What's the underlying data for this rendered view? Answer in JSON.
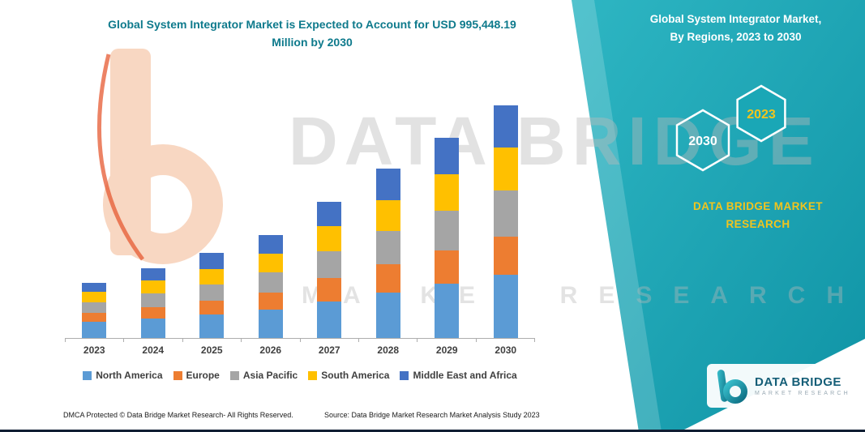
{
  "header": {
    "title_line1": "Global System Integrator Market is Expected to Account for USD 995,448.19",
    "title_line2": "Million by 2030",
    "title_color": "#0e7a8c"
  },
  "watermark": {
    "line1": "DATA BRIDGE",
    "line2": "MARKET RESEARCH"
  },
  "chart_data": {
    "type": "bar",
    "stacked": true,
    "title": "Global System Integrator Market is Expected to Account for USD 995,448.19 Million by 2030",
    "unit": "USD Million",
    "categories": [
      "2023",
      "2024",
      "2025",
      "2026",
      "2027",
      "2028",
      "2029",
      "2030"
    ],
    "series": [
      {
        "name": "North America",
        "color": "#5B9BD5",
        "values": [
          70000,
          84000,
          100000,
          122000,
          157000,
          196000,
          231000,
          269000
        ]
      },
      {
        "name": "Europe",
        "color": "#ED7D31",
        "values": [
          38000,
          49000,
          59000,
          73000,
          98000,
          119000,
          143000,
          164000
        ]
      },
      {
        "name": "Asia Pacific",
        "color": "#A5A5A5",
        "values": [
          45000,
          59000,
          70000,
          87000,
          115000,
          143000,
          171000,
          199000
        ]
      },
      {
        "name": "South America",
        "color": "#FFC000",
        "values": [
          45000,
          56000,
          66000,
          80000,
          108000,
          133000,
          157000,
          182000
        ]
      },
      {
        "name": "Middle East and Africa",
        "color": "#4472C4",
        "values": [
          38000,
          52000,
          70000,
          80000,
          105000,
          133000,
          154000,
          181448
        ]
      }
    ],
    "totals": [
      236000,
      300000,
      365000,
      442000,
      583000,
      724000,
      856000,
      995448.19
    ],
    "ylim": [
      0,
      1000000
    ],
    "grid": false,
    "legend_position": "bottom"
  },
  "banner": {
    "background_color": "#1aa7b6",
    "title_line1": "Global System Integrator Market,",
    "title_line2": "By Regions, 2023 to 2030",
    "hexagons": [
      {
        "label": "2030",
        "color": "#ffffff"
      },
      {
        "label": "2023",
        "color": "#f2c41d"
      }
    ],
    "brand_line1": "DATA BRIDGE MARKET",
    "brand_line2": "RESEARCH",
    "brand_color": "#f2c41d"
  },
  "footer": {
    "dmca": "DMCA Protected © Data Bridge Market Research-  All Rights Reserved.",
    "source": "Source: Data Bridge Market Research  Market Analysis Study 2023"
  },
  "brand_logo": {
    "name": "DATA BRIDGE",
    "subtitle": "MARKET RESEARCH"
  }
}
